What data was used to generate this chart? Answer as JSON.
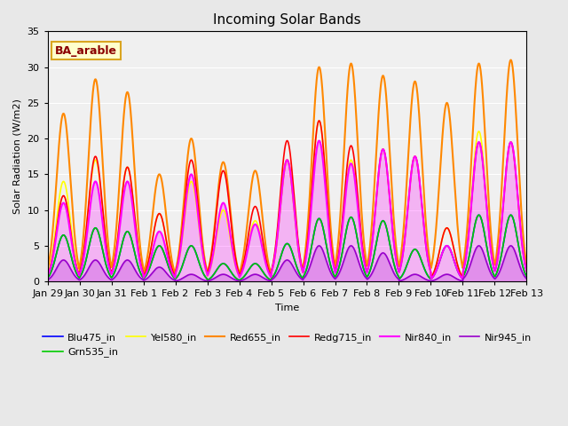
{
  "title": "Incoming Solar Bands",
  "xlabel": "Time",
  "ylabel": "Solar Radiation (W/m2)",
  "annotation": "BA_arable",
  "ylim": [
    0,
    35
  ],
  "xtick_labels": [
    "Jan 29",
    "Jan 30",
    "Jan 31",
    "Feb 1",
    "Feb 2",
    "Feb 3",
    "Feb 4",
    "Feb 5",
    "Feb 6",
    "Feb 7",
    "Feb 8",
    "Feb 9",
    "Feb 10",
    "Feb 11",
    "Feb 12",
    "Feb 13"
  ],
  "legend_entries": [
    {
      "label": "Blu475_in",
      "color": "#0000FF"
    },
    {
      "label": "Grn535_in",
      "color": "#00CC00"
    },
    {
      "label": "Yel580_in",
      "color": "#FFFF00"
    },
    {
      "label": "Red655_in",
      "color": "#FF8800"
    },
    {
      "label": "Redg715_in",
      "color": "#FF0000"
    },
    {
      "label": "Nir840_in",
      "color": "#FF00FF"
    },
    {
      "label": "Nir945_in",
      "color": "#9900CC"
    }
  ],
  "fig_bg_color": "#E8E8E8",
  "plot_bg_color": "#F0F0F0",
  "grid_color": "#FFFFFF",
  "day_peaks": [
    {
      "day": "Jan 29",
      "blu": 6.5,
      "grn": 6.5,
      "yel": 14.0,
      "red": 23.5,
      "redg": 12.0,
      "nir": 11.0,
      "nir2": 3.0
    },
    {
      "day": "Jan 30",
      "blu": 7.5,
      "grn": 7.5,
      "yel": 17.0,
      "red": 28.3,
      "redg": 17.5,
      "nir": 14.0,
      "nir2": 3.0
    },
    {
      "day": "Jan 31",
      "blu": 7.0,
      "grn": 7.0,
      "yel": 16.0,
      "red": 26.5,
      "redg": 16.0,
      "nir": 14.0,
      "nir2": 3.0
    },
    {
      "day": "Feb 1",
      "blu": 5.0,
      "grn": 5.0,
      "yel": 9.5,
      "red": 15.0,
      "redg": 9.5,
      "nir": 7.0,
      "nir2": 2.0
    },
    {
      "day": "Feb 2",
      "blu": 5.0,
      "grn": 5.0,
      "yel": 14.0,
      "red": 20.0,
      "redg": 17.0,
      "nir": 15.0,
      "nir2": 1.0
    },
    {
      "day": "Feb 3",
      "blu": 2.5,
      "grn": 2.5,
      "yel": 10.0,
      "red": 16.7,
      "redg": 15.5,
      "nir": 11.0,
      "nir2": 1.0
    },
    {
      "day": "Feb 4",
      "blu": 2.5,
      "grn": 2.5,
      "yel": 8.5,
      "red": 15.5,
      "redg": 10.5,
      "nir": 8.0,
      "nir2": 1.0
    },
    {
      "day": "Feb 5",
      "blu": 5.3,
      "grn": 5.3,
      "yel": 17.0,
      "red": 17.0,
      "redg": 19.7,
      "nir": 17.0,
      "nir2": 3.0
    },
    {
      "day": "Feb 6",
      "blu": 8.8,
      "grn": 8.8,
      "yel": 22.5,
      "red": 30.0,
      "redg": 22.5,
      "nir": 19.7,
      "nir2": 5.0
    },
    {
      "day": "Feb 7",
      "blu": 9.0,
      "grn": 9.0,
      "yel": 17.0,
      "red": 30.5,
      "redg": 19.0,
      "nir": 16.5,
      "nir2": 5.0
    },
    {
      "day": "Feb 8",
      "blu": 8.5,
      "grn": 8.5,
      "yel": 18.5,
      "red": 28.8,
      "redg": 18.5,
      "nir": 18.5,
      "nir2": 4.0
    },
    {
      "day": "Feb 9",
      "blu": 4.5,
      "grn": 4.5,
      "yel": 17.5,
      "red": 28.0,
      "redg": 17.5,
      "nir": 17.5,
      "nir2": 1.0
    },
    {
      "day": "Feb 10",
      "blu": 5.0,
      "grn": 5.0,
      "yel": 7.5,
      "red": 25.0,
      "redg": 7.5,
      "nir": 5.0,
      "nir2": 1.0
    },
    {
      "day": "Feb 11",
      "blu": 9.3,
      "grn": 9.3,
      "yel": 21.0,
      "red": 30.5,
      "redg": 19.5,
      "nir": 19.5,
      "nir2": 5.0
    },
    {
      "day": "Feb 12",
      "blu": 9.3,
      "grn": 9.3,
      "yel": 19.5,
      "red": 31.0,
      "redg": 19.5,
      "nir": 19.5,
      "nir2": 5.0
    }
  ]
}
